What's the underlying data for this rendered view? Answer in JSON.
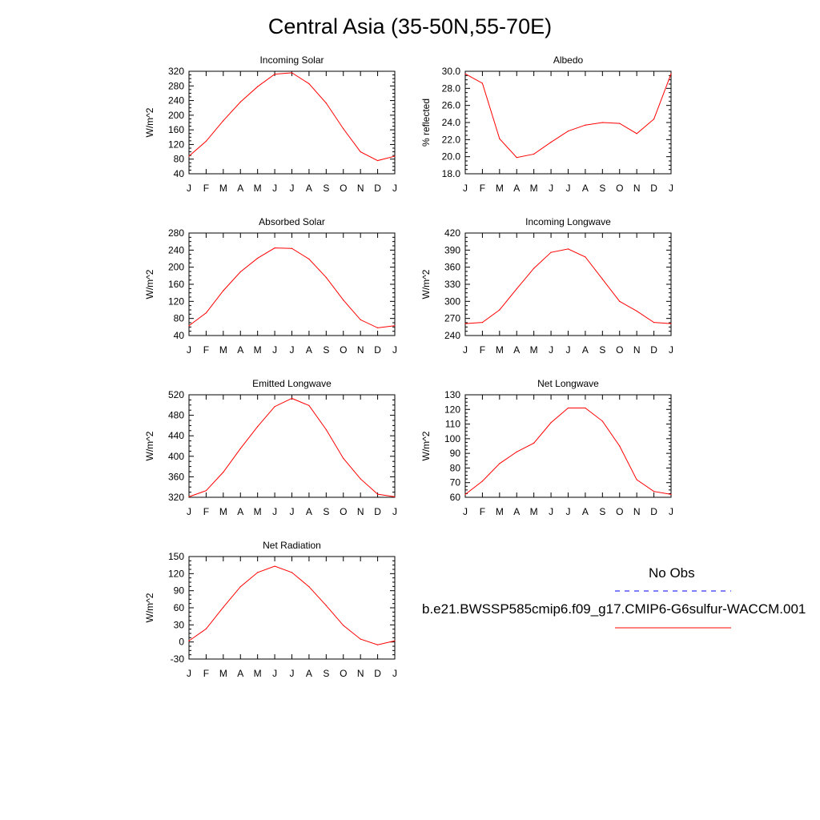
{
  "title": "Central Asia (35-50N,55-70E)",
  "months": [
    "J",
    "F",
    "M",
    "A",
    "M",
    "J",
    "J",
    "A",
    "S",
    "O",
    "N",
    "D",
    "J"
  ],
  "colors": {
    "model": "#ff0000",
    "obs": "#0000ff",
    "axes": "#000000"
  },
  "legend": {
    "obs_label": "No Obs",
    "model_label": "b.e21.BWSSP585cmip6.f09_g17.CMIP6-G6sulfur-WACCM.001"
  },
  "chart_data": [
    {
      "type": "line",
      "title": "Incoming Solar",
      "ylabel": "W/m^2",
      "ylim": [
        40,
        320
      ],
      "yticks": [
        "40",
        "80",
        "120",
        "160",
        "200",
        "240",
        "280",
        "320"
      ],
      "x": [
        "J",
        "F",
        "M",
        "A",
        "M",
        "J",
        "J",
        "A",
        "S",
        "O",
        "N",
        "D",
        "J"
      ],
      "series": [
        {
          "values": [
            88,
            129,
            185,
            236,
            278,
            312,
            316,
            286,
            233,
            163,
            100,
            76,
            88
          ]
        }
      ]
    },
    {
      "type": "line",
      "title": "Albedo",
      "ylabel": "% reflected",
      "ylim": [
        18,
        30
      ],
      "yticks": [
        "18.0",
        "20.0",
        "22.0",
        "24.0",
        "26.0",
        "28.0",
        "30.0"
      ],
      "x": [
        "J",
        "F",
        "M",
        "A",
        "M",
        "J",
        "J",
        "A",
        "S",
        "O",
        "N",
        "D",
        "J"
      ],
      "series": [
        {
          "values": [
            29.7,
            28.6,
            22.1,
            19.9,
            20.3,
            21.7,
            23.0,
            23.7,
            24.0,
            23.9,
            22.7,
            24.4,
            29.7
          ]
        }
      ]
    },
    {
      "type": "line",
      "title": "Absorbed Solar",
      "ylabel": "W/m^2",
      "ylim": [
        40,
        280
      ],
      "yticks": [
        "40",
        "80",
        "120",
        "160",
        "200",
        "240",
        "280"
      ],
      "x": [
        "J",
        "F",
        "M",
        "A",
        "M",
        "J",
        "J",
        "A",
        "S",
        "O",
        "N",
        "D",
        "J"
      ],
      "series": [
        {
          "values": [
            63,
            93,
            145,
            189,
            221,
            245,
            244,
            219,
            176,
            123,
            77,
            58,
            63
          ]
        }
      ]
    },
    {
      "type": "line",
      "title": "Incoming Longwave",
      "ylabel": "W/m^2",
      "ylim": [
        240,
        420
      ],
      "yticks": [
        "240",
        "270",
        "300",
        "330",
        "360",
        "390",
        "420"
      ],
      "x": [
        "J",
        "F",
        "M",
        "A",
        "M",
        "J",
        "J",
        "A",
        "S",
        "O",
        "N",
        "D",
        "J"
      ],
      "series": [
        {
          "values": [
            261,
            263,
            285,
            322,
            358,
            386,
            392,
            378,
            339,
            300,
            283,
            263,
            261
          ]
        }
      ]
    },
    {
      "type": "line",
      "title": "Emitted Longwave",
      "ylabel": "W/m^2",
      "ylim": [
        320,
        520
      ],
      "yticks": [
        "320",
        "360",
        "400",
        "440",
        "480",
        "520"
      ],
      "x": [
        "J",
        "F",
        "M",
        "A",
        "M",
        "J",
        "J",
        "A",
        "S",
        "O",
        "N",
        "D",
        "J"
      ],
      "series": [
        {
          "values": [
            321,
            333,
            369,
            415,
            458,
            497,
            513,
            499,
            452,
            396,
            356,
            326,
            321
          ]
        }
      ]
    },
    {
      "type": "line",
      "title": "Net Longwave",
      "ylabel": "W/m^2",
      "ylim": [
        60,
        130
      ],
      "yticks": [
        "60",
        "70",
        "80",
        "90",
        "100",
        "110",
        "120",
        "130"
      ],
      "x": [
        "J",
        "F",
        "M",
        "A",
        "M",
        "J",
        "J",
        "A",
        "S",
        "O",
        "N",
        "D",
        "J"
      ],
      "series": [
        {
          "values": [
            62,
            71,
            83,
            91,
            97,
            111,
            121,
            121,
            112,
            95,
            72,
            64,
            62
          ]
        }
      ]
    },
    {
      "type": "line",
      "title": "Net Radiation",
      "ylabel": "W/m^2",
      "ylim": [
        -30,
        150
      ],
      "yticks": [
        "-30",
        "0",
        "30",
        "60",
        "90",
        "120",
        "150"
      ],
      "x": [
        "J",
        "F",
        "M",
        "A",
        "M",
        "J",
        "J",
        "A",
        "S",
        "O",
        "N",
        "D",
        "J"
      ],
      "series": [
        {
          "values": [
            2,
            23,
            61,
            97,
            122,
            133,
            122,
            97,
            64,
            29,
            5,
            -5,
            2
          ]
        }
      ]
    }
  ]
}
